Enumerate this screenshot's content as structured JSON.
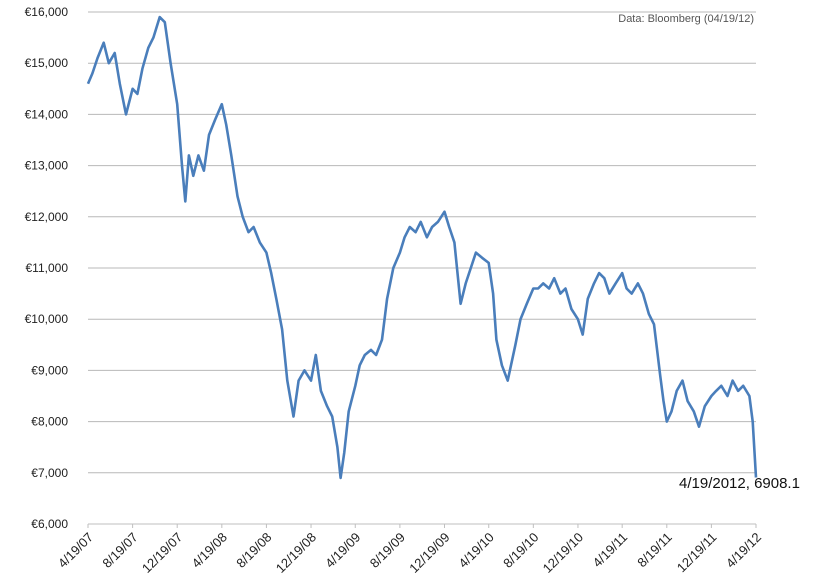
{
  "source_note": "Data: Bloomberg (04/19/12)",
  "end_annotation": "4/19/2012, 6908.1",
  "chart_data": {
    "type": "line",
    "ylim": [
      6000,
      16000
    ],
    "y_ticks": [
      "€6,000",
      "€7,000",
      "€8,000",
      "€9,000",
      "€10,000",
      "€11,000",
      "€12,000",
      "€13,000",
      "€14,000",
      "€15,000",
      "€16,000"
    ],
    "y_tick_values": [
      6000,
      7000,
      8000,
      9000,
      10000,
      11000,
      12000,
      13000,
      14000,
      15000,
      16000
    ],
    "x_ticks": [
      "4/19/07",
      "8/19/07",
      "12/19/07",
      "4/19/08",
      "8/19/08",
      "12/19/08",
      "4/19/09",
      "8/19/09",
      "12/19/09",
      "4/19/10",
      "8/19/10",
      "12/19/10",
      "4/19/11",
      "8/19/11",
      "12/19/11",
      "4/19/12"
    ],
    "grid": true,
    "line_color": "#4a7ebb",
    "series": [
      {
        "x": [
          "4/19/07",
          "5/1/07",
          "5/15/07",
          "6/1/07",
          "6/15/07",
          "7/1/07",
          "7/15/07",
          "8/1/07",
          "8/19/07",
          "9/1/07",
          "9/15/07",
          "10/1/07",
          "10/15/07",
          "11/1/07",
          "11/15/07",
          "12/1/07",
          "12/19/07",
          "1/1/08",
          "1/10/08",
          "1/20/08",
          "2/1/08",
          "2/15/08",
          "3/1/08",
          "3/15/08",
          "4/1/08",
          "4/19/08",
          "5/1/08",
          "5/15/08",
          "6/1/08",
          "6/15/08",
          "7/1/08",
          "7/15/08",
          "8/1/08",
          "8/19/08",
          "9/1/08",
          "9/15/08",
          "10/1/08",
          "10/15/08",
          "11/1/08",
          "11/15/08",
          "12/1/08",
          "12/19/08",
          "1/1/09",
          "1/15/09",
          "2/1/09",
          "2/15/09",
          "3/1/09",
          "3/10/09",
          "3/20/09",
          "4/1/09",
          "4/19/09",
          "5/1/09",
          "5/15/09",
          "6/1/09",
          "6/15/09",
          "7/1/09",
          "7/15/09",
          "8/1/09",
          "8/19/09",
          "9/1/09",
          "9/15/09",
          "10/1/09",
          "10/15/09",
          "11/1/09",
          "11/15/09",
          "12/1/09",
          "12/19/09",
          "1/1/10",
          "1/15/10",
          "2/1/10",
          "2/15/10",
          "3/1/10",
          "3/15/10",
          "4/1/10",
          "4/19/10",
          "5/1/10",
          "5/10/10",
          "5/25/10",
          "6/10/10",
          "7/1/10",
          "7/15/10",
          "8/1/10",
          "8/19/10",
          "9/1/10",
          "9/15/10",
          "10/1/10",
          "10/15/10",
          "11/1/10",
          "11/15/10",
          "12/1/10",
          "12/19/10",
          "1/1/11",
          "1/15/11",
          "2/1/11",
          "2/15/11",
          "3/1/11",
          "3/15/11",
          "4/1/11",
          "4/19/11",
          "5/1/11",
          "5/15/11",
          "6/1/11",
          "6/15/11",
          "7/1/11",
          "7/15/11",
          "8/1/11",
          "8/10/11",
          "8/19/11",
          "9/1/11",
          "9/15/11",
          "10/1/11",
          "10/15/11",
          "11/1/11",
          "11/15/11",
          "12/1/11",
          "12/19/11",
          "1/1/12",
          "1/15/12",
          "2/1/12",
          "2/15/12",
          "3/1/12",
          "3/15/12",
          "4/1/12",
          "4/10/12",
          "4/19/12"
        ],
        "values": [
          14600,
          14800,
          15100,
          15400,
          15000,
          15200,
          14600,
          14000,
          14500,
          14400,
          14900,
          15300,
          15500,
          15900,
          15800,
          15000,
          14200,
          13000,
          12300,
          13200,
          12800,
          13200,
          12900,
          13600,
          13900,
          14200,
          13800,
          13200,
          12400,
          12000,
          11700,
          11800,
          11500,
          11300,
          10900,
          10400,
          9800,
          8800,
          8100,
          8800,
          9000,
          8800,
          9300,
          8600,
          8300,
          8100,
          7500,
          6900,
          7400,
          8200,
          8700,
          9100,
          9300,
          9400,
          9300,
          9600,
          10400,
          11000,
          11300,
          11600,
          11800,
          11700,
          11900,
          11600,
          11800,
          11900,
          12100,
          11800,
          11500,
          10300,
          10700,
          11000,
          11300,
          11200,
          11100,
          10500,
          9600,
          9100,
          8800,
          9500,
          10000,
          10300,
          10600,
          10600,
          10700,
          10600,
          10800,
          10500,
          10600,
          10200,
          10000,
          9700,
          10400,
          10700,
          10900,
          10800,
          10500,
          10700,
          10900,
          10600,
          10500,
          10700,
          10500,
          10100,
          9900,
          8900,
          8400,
          8000,
          8200,
          8600,
          8800,
          8400,
          8200,
          7900,
          8300,
          8500,
          8600,
          8700,
          8500,
          8800,
          8600,
          8700,
          8500,
          8000,
          6908
        ],
        "display_values": []
      }
    ]
  }
}
